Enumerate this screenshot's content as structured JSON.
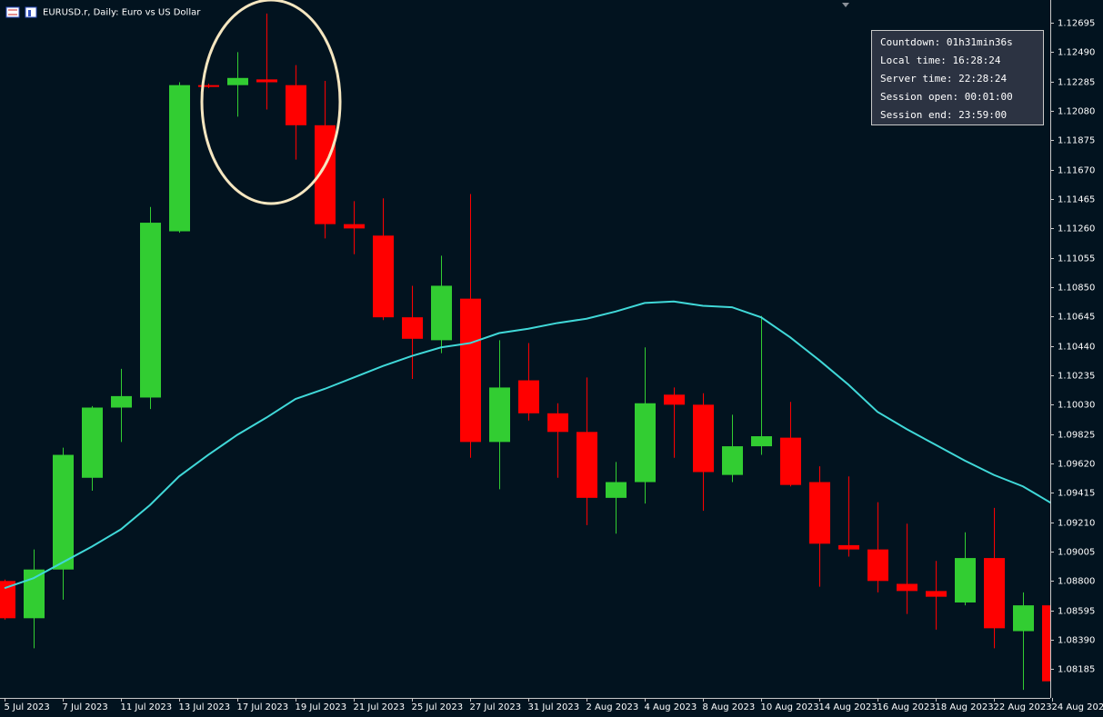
{
  "chart_data": {
    "type": "candlestick",
    "title": "EURUSD.r, Daily:  Euro vs US Dollar",
    "categories": [
      "5 Jul 2023",
      null,
      "7 Jul 2023",
      null,
      "11 Jul 2023",
      null,
      "13 Jul 2023",
      null,
      "17 Jul 2023",
      null,
      "19 Jul 2023",
      null,
      "21 Jul 2023",
      null,
      "25 Jul 2023",
      null,
      "27 Jul 2023",
      null,
      "31 Jul 2023",
      null,
      "2 Aug 2023",
      null,
      "4 Aug 2023",
      null,
      "8 Aug 2023",
      null,
      "10 Aug 2023",
      null,
      "14 Aug 2023",
      null,
      "16 Aug 2023",
      null,
      "18 Aug 2023",
      null,
      "22 Aug 2023",
      null,
      "24 Aug 2023"
    ],
    "open": [
      1.088,
      1.0854,
      1.0888,
      1.0952,
      1.1001,
      1.1008,
      1.1124,
      1.1226,
      1.1226,
      1.123,
      1.1226,
      1.1198,
      1.1129,
      1.1121,
      1.1064,
      1.1048,
      1.1077,
      1.0977,
      1.102,
      1.0997,
      1.0984,
      1.0938,
      1.0949,
      1.101,
      1.1003,
      1.0954,
      1.0974,
      1.098,
      1.0949,
      1.0905,
      1.0902,
      1.0878,
      1.0873,
      1.0865,
      1.0896,
      1.0845,
      1.0863
    ],
    "high": [
      1.0881,
      1.0902,
      1.0973,
      1.1002,
      1.1028,
      1.1141,
      1.1228,
      1.1227,
      1.1249,
      1.1276,
      1.124,
      1.1229,
      1.1145,
      1.1147,
      1.1086,
      1.1107,
      1.115,
      1.1048,
      1.1046,
      1.1004,
      1.1022,
      1.0963,
      1.1043,
      1.1015,
      1.1011,
      1.0996,
      1.1065,
      1.1005,
      1.096,
      1.0953,
      1.0935,
      1.092,
      1.0894,
      1.0914,
      1.0931,
      1.0872,
      1.0877
    ],
    "low": [
      1.0853,
      1.0833,
      1.0867,
      1.0943,
      1.0977,
      1.1,
      1.1123,
      1.1224,
      1.1204,
      1.1209,
      1.1174,
      1.1119,
      1.1108,
      1.1062,
      1.1021,
      1.1039,
      1.0966,
      1.0944,
      1.0992,
      1.0952,
      1.0919,
      1.0913,
      1.0934,
      1.0966,
      1.0929,
      1.0949,
      1.0968,
      1.0946,
      1.0876,
      1.0897,
      1.0872,
      1.0857,
      1.0846,
      1.0863,
      1.0833,
      1.0804,
      1.081
    ],
    "close": [
      1.0854,
      1.0888,
      1.0968,
      1.1001,
      1.1009,
      1.113,
      1.1226,
      1.1225,
      1.1231,
      1.1228,
      1.1198,
      1.1129,
      1.1126,
      1.1064,
      1.1049,
      1.1086,
      1.0977,
      1.1015,
      1.0997,
      1.0984,
      1.0938,
      1.0949,
      1.1004,
      1.1003,
      1.0956,
      1.0974,
      1.0981,
      1.0947,
      1.0906,
      1.0902,
      1.088,
      1.0873,
      1.0869,
      1.0896,
      1.0847,
      1.0863,
      1.081
    ],
    "up_color": "#32cd32",
    "down_color": "#ff0000",
    "moving_average": {
      "color": "#40d8d8",
      "values": [
        1.0875,
        1.0882,
        1.0893,
        1.0904,
        1.0916,
        1.0933,
        1.0953,
        1.0968,
        1.0982,
        1.0994,
        1.1007,
        1.1014,
        1.1022,
        1.103,
        1.1037,
        1.1043,
        1.1046,
        1.1053,
        1.1056,
        1.106,
        1.1063,
        1.1068,
        1.1074,
        1.1075,
        1.1072,
        1.1071,
        1.1064,
        1.105,
        1.1034,
        1.1017,
        1.0998,
        1.0986,
        1.0975,
        1.0964,
        1.0954,
        1.0946,
        1.0934
      ]
    },
    "ylim": [
      1.07984,
      1.12854
    ],
    "yticks": [
      1.12695,
      {
        "value": 1.1249,
        "label": "1.12490"
      },
      1.12285,
      {
        "value": 1.1208,
        "label": "1.12080"
      },
      1.11875,
      {
        "value": 1.1167,
        "label": "1.11670"
      },
      1.11465,
      {
        "value": 1.1126,
        "label": "1.11260"
      },
      1.11055,
      {
        "value": 1.1085,
        "label": "1.10850"
      },
      1.10645,
      {
        "value": 1.1044,
        "label": "1.10440"
      },
      1.10235,
      {
        "value": 1.1003,
        "label": "1.10030"
      },
      1.09825,
      {
        "value": 1.0962,
        "label": "1.09620"
      },
      1.09415,
      {
        "value": 1.0921,
        "label": "1.09210"
      },
      1.09005,
      {
        "value": 1.088,
        "label": "1.08800"
      },
      1.08595,
      {
        "value": 1.0839,
        "label": "1.08390"
      },
      1.08185
    ],
    "grid": false
  },
  "info_panel": [
    "Countdown: 01h31min36s",
    "Local time: 16:28:24",
    "Server time: 22:28:24",
    "Session open: 00:01:00",
    "Session end: 23:59:00"
  ]
}
